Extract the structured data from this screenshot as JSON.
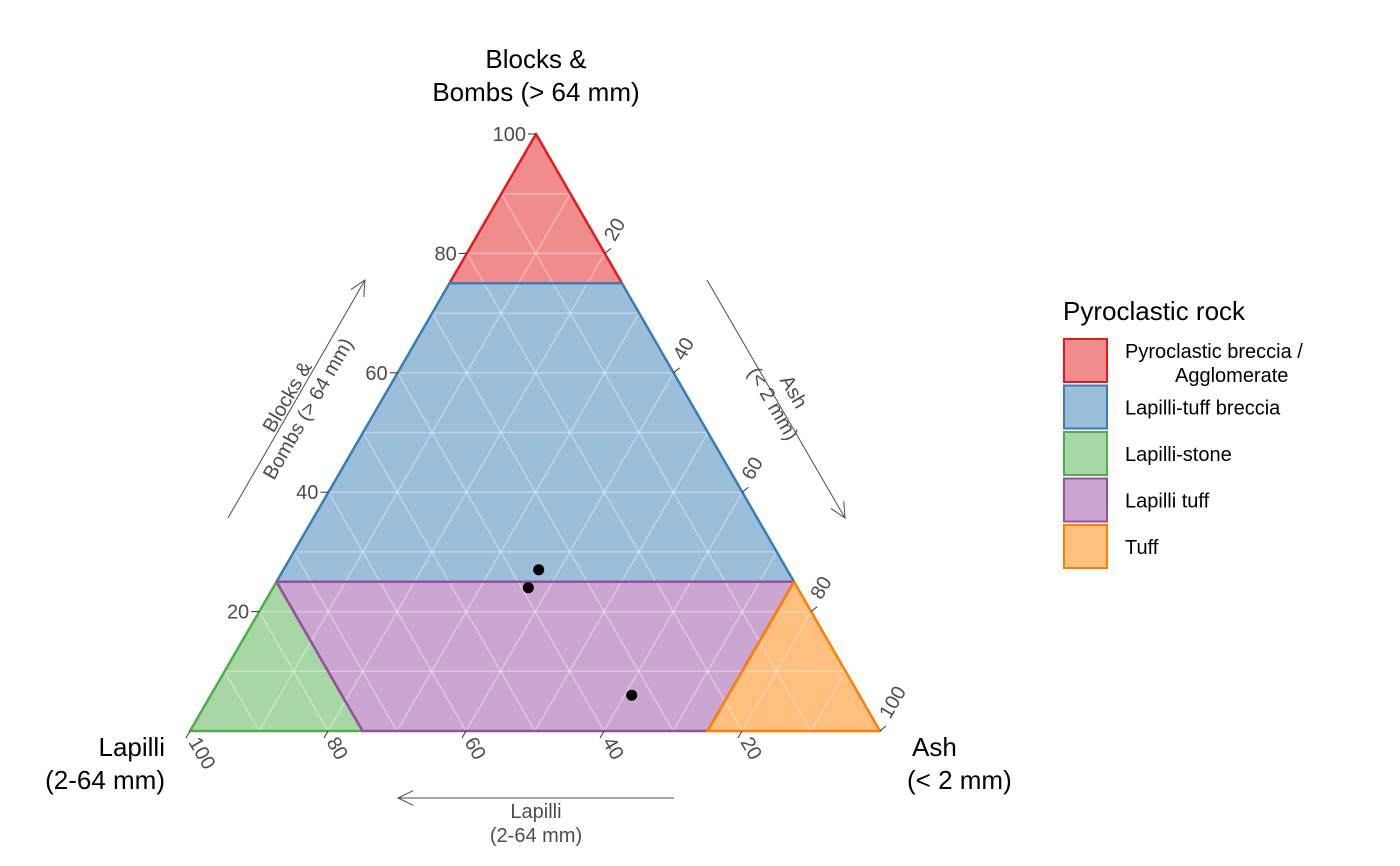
{
  "chart_data": {
    "type": "ternary",
    "vertices": {
      "top": {
        "title_lines": [
          "Blocks &",
          "Bombs (> 64 mm)"
        ]
      },
      "left": {
        "title_lines": [
          "Lapilli",
          "(2-64 mm)"
        ]
      },
      "right": {
        "title_lines": [
          "Ash",
          "(< 2 mm)"
        ]
      }
    },
    "axes": {
      "blocks": {
        "ticks": [
          20,
          40,
          60,
          80,
          100
        ],
        "arrow_label_lines": [
          "Blocks &",
          "Bombs (> 64 mm)"
        ]
      },
      "ash": {
        "ticks": [
          20,
          40,
          60,
          80,
          100
        ],
        "arrow_label_lines": [
          "Ash",
          "(< 2 mm)"
        ]
      },
      "lapilli": {
        "ticks": [
          20,
          40,
          60,
          80,
          100
        ],
        "arrow_label_lines": [
          "Lapilli",
          "(2-64 mm)"
        ]
      }
    },
    "grid": true,
    "regions": [
      {
        "name": "Pyroclastic breccia / Agglomerate",
        "fill": "#E41A1C",
        "stroke": "#E41A1C",
        "vertices": [
          [
            100,
            0,
            0
          ],
          [
            75,
            25,
            0
          ],
          [
            75,
            0,
            25
          ]
        ]
      },
      {
        "name": "Lapilli-tuff breccia",
        "fill": "#377EB8",
        "stroke": "#377EB8",
        "vertices": [
          [
            75,
            25,
            0
          ],
          [
            75,
            0,
            25
          ],
          [
            25,
            0,
            75
          ],
          [
            25,
            75,
            0
          ]
        ]
      },
      {
        "name": "Lapilli-stone",
        "fill": "#4DAF4A",
        "stroke": "#4DAF4A",
        "vertices": [
          [
            25,
            75,
            0
          ],
          [
            0,
            100,
            0
          ],
          [
            0,
            75,
            25
          ]
        ]
      },
      {
        "name": "Lapilli tuff",
        "fill": "#984EA3",
        "stroke": "#984EA3",
        "vertices": [
          [
            25,
            75,
            0
          ],
          [
            0,
            75,
            25
          ],
          [
            0,
            25,
            75
          ],
          [
            25,
            0,
            75
          ]
        ]
      },
      {
        "name": "Tuff",
        "fill": "#FF7F00",
        "stroke": "#FF7F00",
        "vertices": [
          [
            25,
            0,
            75
          ],
          [
            0,
            25,
            75
          ],
          [
            0,
            0,
            100
          ]
        ]
      }
    ],
    "points": [
      {
        "blocks": 27,
        "lapilli": 36,
        "ash": 37
      },
      {
        "blocks": 24,
        "lapilli": 39,
        "ash": 37
      },
      {
        "blocks": 6,
        "lapilli": 33,
        "ash": 61
      }
    ],
    "legend": {
      "title": "Pyroclastic rock",
      "position": "right",
      "items": [
        {
          "lines": [
            "Pyroclastic breccia /",
            "Agglomerate"
          ],
          "fill": "#E41A1C"
        },
        {
          "lines": [
            "Lapilli-tuff breccia"
          ],
          "fill": "#377EB8"
        },
        {
          "lines": [
            "Lapilli-stone"
          ],
          "fill": "#4DAF4A"
        },
        {
          "lines": [
            "Lapilli tuff"
          ],
          "fill": "#984EA3"
        },
        {
          "lines": [
            "Tuff"
          ],
          "fill": "#FF7F00"
        }
      ]
    }
  }
}
